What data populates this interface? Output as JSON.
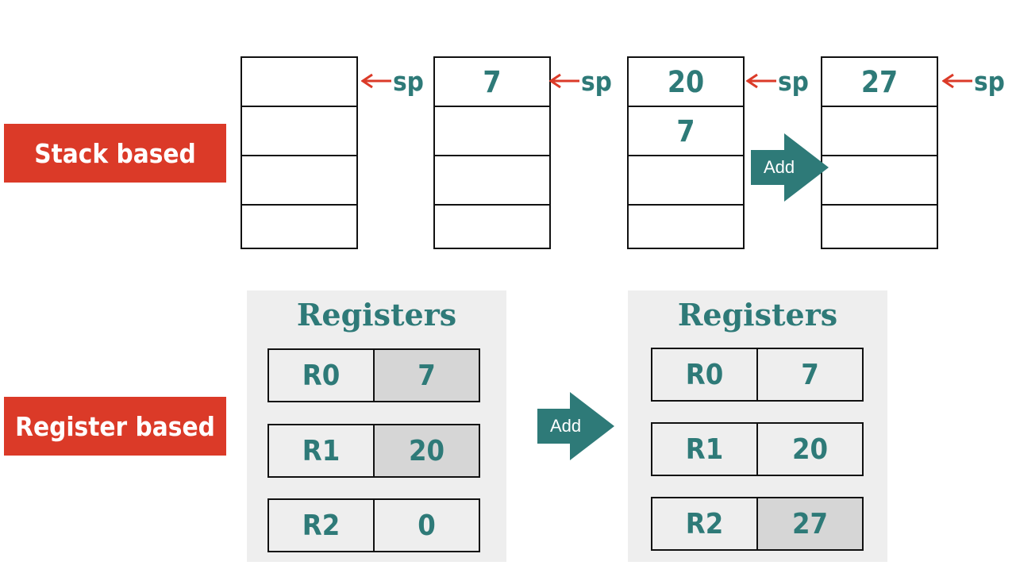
{
  "labels": {
    "stack": "Stack based",
    "register": "Register based"
  },
  "stacks": [
    {
      "cells": [
        "",
        "",
        "",
        ""
      ],
      "pointer": "sp"
    },
    {
      "cells": [
        "7",
        "",
        "",
        ""
      ],
      "pointer": "sp"
    },
    {
      "cells": [
        "20",
        "7",
        "",
        ""
      ],
      "pointer": "sp"
    },
    {
      "cells": [
        "27",
        "",
        "",
        ""
      ],
      "pointer": "sp"
    }
  ],
  "operation": "Add",
  "registers_before": {
    "title": "Registers",
    "rows": [
      {
        "name": "R0",
        "value": "7"
      },
      {
        "name": "R1",
        "value": "20"
      },
      {
        "name": "R2",
        "value": "0"
      }
    ]
  },
  "registers_after": {
    "title": "Registers",
    "rows": [
      {
        "name": "R0",
        "value": "7"
      },
      {
        "name": "R1",
        "value": "20"
      },
      {
        "name": "R2",
        "value": "27"
      }
    ]
  },
  "colors": {
    "label_bg": "#db3a28",
    "teal": "#2e7a78",
    "pointer_arrow": "#db3a28",
    "panel_bg": "#eeeeee",
    "highlight": "#d6d6d6"
  }
}
